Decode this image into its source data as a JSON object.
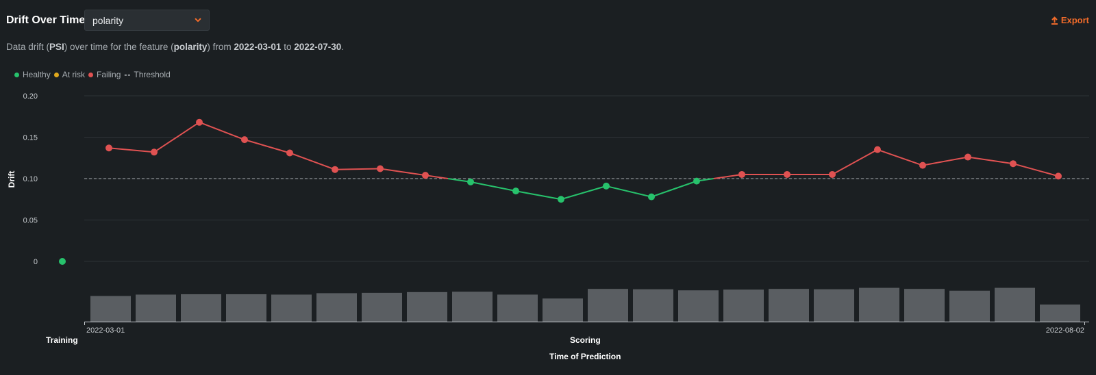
{
  "header": {
    "title": "Drift Over Time",
    "feature_select": "polarity",
    "export_label": "Export"
  },
  "description": {
    "prefix": "Data drift (",
    "metric": "PSI",
    "mid1": ") over time for the feature (",
    "feature": "polarity",
    "mid2": ") from ",
    "start": "2022-03-01",
    "mid3": " to ",
    "end": "2022-07-30",
    "suffix": "."
  },
  "legend": {
    "healthy": "Healthy",
    "at_risk": "At risk",
    "failing": "Failing",
    "threshold": "Threshold"
  },
  "colors": {
    "healthy": "#27c26c",
    "at_risk": "#e0a81c",
    "failing": "#e05252",
    "accent": "#ef6a2a",
    "bar": "#5a5e62"
  },
  "chart_data": {
    "type": "line",
    "ylabel": "Drift",
    "xlabel": "Time of Prediction",
    "ylim": [
      0,
      0.2
    ],
    "y_ticks": [
      "0",
      "0.05",
      "0.10",
      "0.15",
      "0.20"
    ],
    "y_tick_values": [
      0,
      0.05,
      0.1,
      0.15,
      0.2
    ],
    "threshold": 0.1,
    "training_label": "Training",
    "scoring_label": "Scoring",
    "x_start_label": "2022-03-01",
    "x_end_label": "2022-08-02",
    "training_value": 0.0,
    "series": [
      {
        "values": [
          0.137,
          0.132,
          0.168,
          0.147,
          0.131,
          0.111,
          0.112,
          0.104,
          0.096,
          0.085,
          0.075,
          0.091,
          0.078,
          0.097,
          0.105,
          0.105,
          0.105,
          0.135,
          0.116,
          0.126,
          0.118,
          0.103
        ]
      }
    ],
    "prediction_volume": {
      "values": [
        0.72,
        0.76,
        0.77,
        0.77,
        0.76,
        0.8,
        0.81,
        0.83,
        0.84,
        0.76,
        0.65,
        0.92,
        0.91,
        0.88,
        0.9,
        0.92,
        0.91,
        0.95,
        0.92,
        0.87,
        0.95,
        0.48
      ]
    }
  }
}
